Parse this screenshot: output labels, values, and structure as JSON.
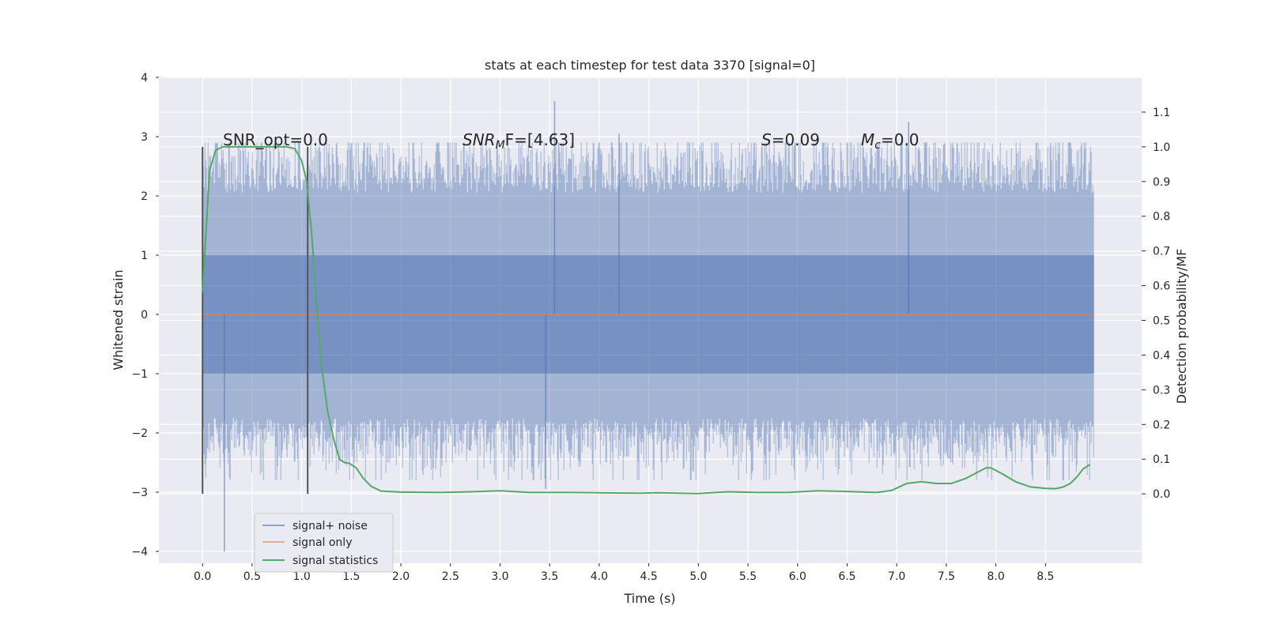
{
  "chart_data": {
    "type": "line",
    "title": "stats at each timestep for test data 3370 [signal=0]",
    "xlabel": "Time (s)",
    "ylabel": "Whitened strain",
    "ylabel_right": "Detection probability/MF",
    "xlim": [
      -0.44,
      9.47
    ],
    "ylim": [
      -4.2,
      4.0
    ],
    "ylim_right": [
      -0.2,
      1.2
    ],
    "x_ticks": [
      "0.0",
      "0.5",
      "1.0",
      "1.5",
      "2.0",
      "2.5",
      "3.0",
      "3.5",
      "4.0",
      "4.5",
      "5.0",
      "5.5",
      "6.0",
      "6.5",
      "7.0",
      "7.5",
      "8.0",
      "8.5"
    ],
    "y_ticks": [
      "4",
      "3",
      "2",
      "1",
      "0",
      "−1",
      "−2",
      "−3",
      "−4"
    ],
    "y_right_ticks": [
      "1.1",
      "1.0",
      "0.9",
      "0.8",
      "0.7",
      "0.6",
      "0.5",
      "0.4",
      "0.3",
      "0.2",
      "0.1",
      "0.0"
    ],
    "grid": true,
    "legend": [
      "signal+ noise",
      "signal only",
      "signal statistics"
    ],
    "legend_position": "lower-left",
    "colors": {
      "noise": "#4c72b0",
      "signal": "#dd8452",
      "stats": "#55a868",
      "bg": "#eaeaf2",
      "vline": "#555555"
    },
    "annotations": {
      "snr_opt": "SNR_opt=0.0",
      "snr_mf_sym": "SNR",
      "snr_mf_sub": "M",
      "snr_mf_rest": "F=[4.63]",
      "s_sym": "S",
      "s_rest": "=0.09",
      "mc_sym": "M",
      "mc_sub": "c",
      "mc_rest": "=0.0"
    },
    "vertical_lines_x": [
      0.0,
      1.06
    ],
    "noise_series": {
      "name": "signal+ noise",
      "x_range": [
        0.0,
        8.99
      ],
      "typical_envelope": [
        -1.5,
        1.6
      ],
      "extreme_spikes": [
        {
          "x": 0.22,
          "y": -4.0
        },
        {
          "x": 3.55,
          "y": 3.6
        },
        {
          "x": 7.12,
          "y": 3.25
        },
        {
          "x": 4.2,
          "y": 3.05
        },
        {
          "x": 3.46,
          "y": -2.95
        }
      ]
    },
    "signal_series": {
      "name": "signal only",
      "x": [
        0.0,
        8.99
      ],
      "y": [
        0.0,
        0.0
      ]
    },
    "stats_series": {
      "name": "signal statistics",
      "axis": "right",
      "x": [
        0.0,
        0.07,
        0.13,
        0.2,
        0.3,
        0.5,
        0.7,
        0.85,
        0.93,
        1.0,
        1.05,
        1.1,
        1.15,
        1.2,
        1.26,
        1.32,
        1.38,
        1.43,
        1.48,
        1.55,
        1.62,
        1.7,
        1.8,
        2.0,
        2.4,
        2.7,
        3.0,
        3.3,
        3.7,
        4.0,
        4.4,
        4.6,
        5.0,
        5.3,
        5.6,
        5.9,
        6.2,
        6.5,
        6.8,
        6.95,
        7.1,
        7.25,
        7.4,
        7.55,
        7.7,
        7.8,
        7.9,
        7.95,
        8.05,
        8.2,
        8.35,
        8.5,
        8.6,
        8.68,
        8.75,
        8.82,
        8.88,
        8.95
      ],
      "y": [
        0.58,
        0.93,
        0.99,
        1.0,
        1.0,
        1.0,
        1.0,
        1.0,
        0.995,
        0.96,
        0.9,
        0.75,
        0.55,
        0.37,
        0.24,
        0.16,
        0.1,
        0.09,
        0.088,
        0.075,
        0.045,
        0.022,
        0.008,
        0.005,
        0.004,
        0.006,
        0.009,
        0.004,
        0.004,
        0.003,
        0.002,
        0.003,
        0.001,
        0.006,
        0.004,
        0.004,
        0.009,
        0.007,
        0.004,
        0.01,
        0.03,
        0.035,
        0.03,
        0.03,
        0.045,
        0.06,
        0.075,
        0.075,
        0.06,
        0.035,
        0.02,
        0.016,
        0.015,
        0.02,
        0.03,
        0.05,
        0.072,
        0.085
      ]
    }
  }
}
